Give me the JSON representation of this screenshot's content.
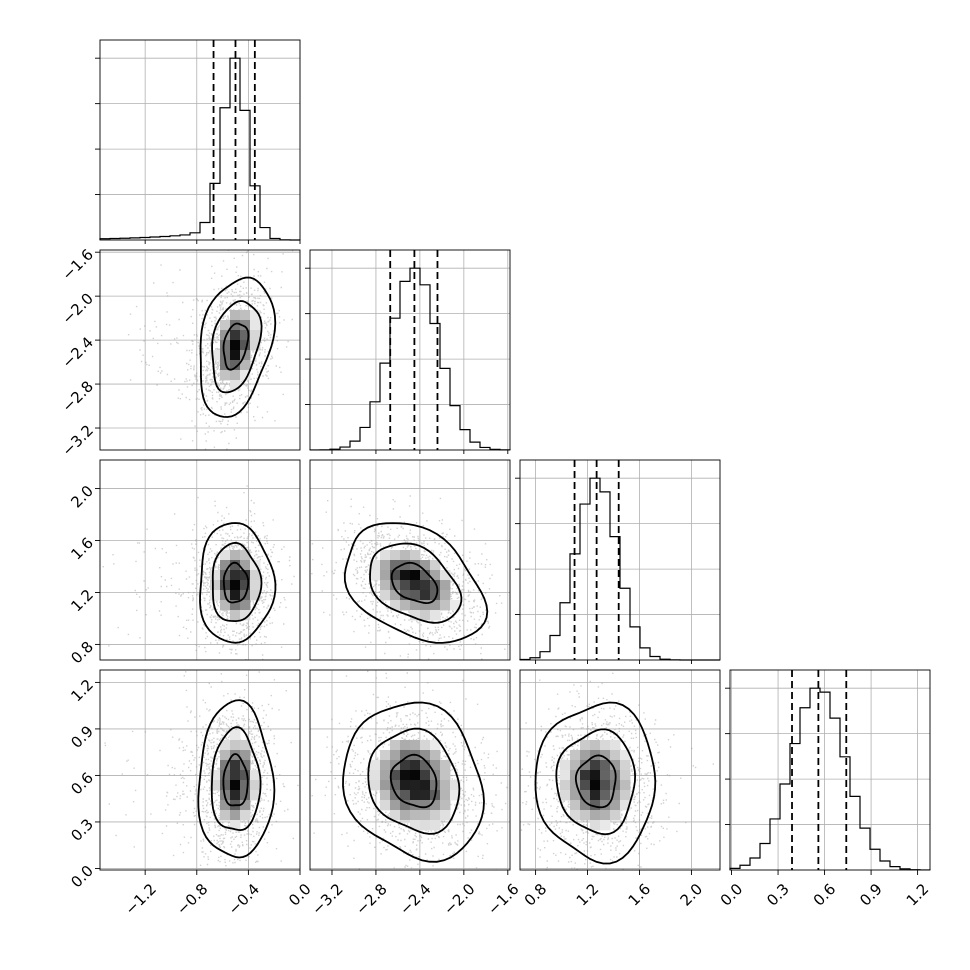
{
  "chart_data": {
    "type": "corner",
    "title": "",
    "parameters": [
      {
        "index": 0,
        "range": [
          -1.55,
          0.0
        ],
        "ticks": [
          -1.2,
          -0.8,
          -0.4,
          0.0
        ],
        "tick_labels": [
          "−1.2",
          "−0.8",
          "−0.4",
          "0.0"
        ],
        "median": -0.5,
        "q16": -0.67,
        "q84": -0.35,
        "sigma": 0.1,
        "tail_left": true,
        "tail_weight": 0.07,
        "tail_scale": 0.45
      },
      {
        "index": 1,
        "range": [
          -3.4,
          -1.58
        ],
        "ticks": [
          -3.2,
          -2.8,
          -2.4,
          -2.0,
          -1.6
        ],
        "tick_labels": [
          "−3.2",
          "−2.8",
          "−2.4",
          "−2.0",
          "−1.6"
        ],
        "median": -2.45,
        "q16": -2.67,
        "q84": -2.24,
        "sigma": 0.22,
        "tail_left": false,
        "tail_weight": 0,
        "tail_scale": 0
      },
      {
        "index": 2,
        "range": [
          0.68,
          2.22
        ],
        "ticks": [
          0.8,
          1.2,
          1.6,
          2.0
        ],
        "tick_labels": [
          "0.8",
          "1.2",
          "1.6",
          "2.0"
        ],
        "median": 1.27,
        "q16": 1.1,
        "q84": 1.44,
        "sigma": 0.16,
        "tail_left": false,
        "tail_weight": 0,
        "tail_scale": 0
      },
      {
        "index": 3,
        "range": [
          -0.01,
          1.28
        ],
        "ticks": [
          0.0,
          0.3,
          0.6,
          0.9,
          1.2
        ],
        "tick_labels": [
          "0.0",
          "0.3",
          "0.6",
          "0.9",
          "1.2"
        ],
        "median": 0.56,
        "q16": 0.39,
        "q84": 0.74,
        "sigma": 0.175,
        "tail_left": false,
        "tail_weight": 0,
        "tail_scale": 0
      }
    ],
    "correlations": {
      "1-0": 0.3,
      "2-0": 0.0,
      "2-1": -0.35,
      "3-0": 0.0,
      "3-1": -0.15,
      "3-2": 0.0
    },
    "histogram_bins": 20,
    "contour_levels": [
      0.39,
      0.86,
      0.99
    ],
    "grid": true,
    "colors": {
      "line": "#000000",
      "scatter": "#9a9a9a",
      "grid": "#b0b0b0",
      "background": "#ffffff"
    }
  }
}
